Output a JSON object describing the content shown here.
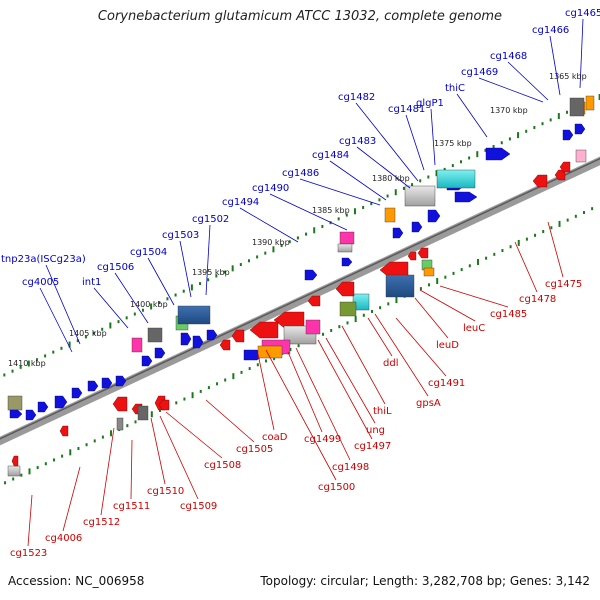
{
  "title": "Corynebacterium glutamicum ATCC 13032, complete genome",
  "footer": {
    "accession": "Accession: NC_006958",
    "info": "Topology: circular; Length: 3,282,708 bp; Genes: 3,142"
  },
  "colors": {
    "forward_label": "#0000cc",
    "reverse_label": "#cc0000",
    "backbone": "#888888",
    "tick_major": "#1a7a1a",
    "tick_minor": "#1a7a1a"
  },
  "scale_labels": [
    "1365 kbp",
    "1370 kbp",
    "1375 kbp",
    "1380 kbp",
    "1385 kbp",
    "1390 kbp",
    "1395 kbp",
    "1400 kbp",
    "1405 kbp",
    "1410 kbp"
  ],
  "forward_labels": [
    "cg1465",
    "cg1466",
    "cg1468",
    "cg1469",
    "thiC",
    "glgP1",
    "cg1481",
    "cg1482",
    "cg1483",
    "cg1484",
    "cg1486",
    "cg1490",
    "cg1494",
    "cg1502",
    "cg1503",
    "cg1504",
    "cg1506",
    "int1",
    "tnp23a(ISCg23a)",
    "cg4005"
  ],
  "reverse_labels": [
    "cg1475",
    "cg1478",
    "cg1485",
    "leuC",
    "leuD",
    "cg1491",
    "ddl",
    "gpsA",
    "thiL",
    "ung",
    "cg1497",
    "cg1498",
    "cg1499",
    "cg1500",
    "coaD",
    "cg1505",
    "cg1508",
    "cg1509",
    "cg1510",
    "cg1511",
    "cg1512",
    "cg4006",
    "cg1523"
  ]
}
